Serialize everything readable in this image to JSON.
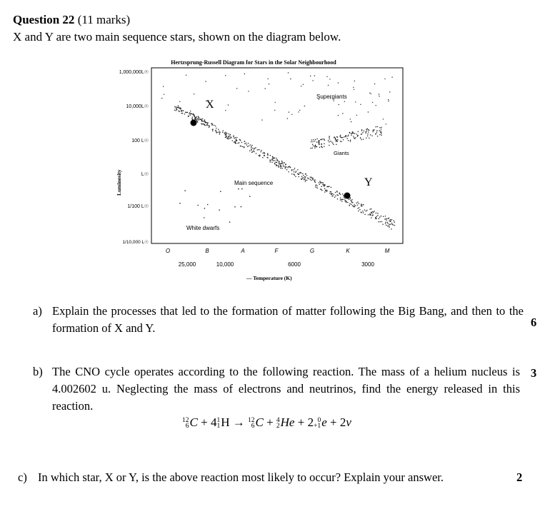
{
  "question": {
    "number_label": "Question 22",
    "marks_label": "(11 marks)",
    "intro": "X and Y are two main sequence stars, shown on the diagram below."
  },
  "diagram": {
    "title": "Hertzsprung-Russell Diagram for Stars in the Solar Neighbourhood",
    "y_axis_label": "Luminosity",
    "x_axis_label": "— Temperature (K)",
    "luminosity_ticks": [
      "1,000,000L☉",
      "10,000L☉",
      "100 L☉",
      "L☉",
      "1/100 L☉",
      "1/10,000 L☉"
    ],
    "spectral_classes": [
      "O",
      "B",
      "A",
      "F",
      "G",
      "K",
      "M"
    ],
    "temperature_ticks": [
      "25,000",
      "10,000",
      "6000",
      "3000"
    ],
    "region_labels": {
      "supergiants": "Supergiants",
      "giants": "Giants",
      "main_sequence": "Main sequence",
      "white_dwarfs": "White dwarfs"
    },
    "star_labels": {
      "x": "X",
      "y": "Y"
    }
  },
  "parts": [
    {
      "label": "a)",
      "text": "Explain the processes that led to the formation of matter following the Big Bang, and then to the formation of X and Y.",
      "marks": "6"
    },
    {
      "label": "b)",
      "text": "The CNO cycle operates according to the following reaction. The mass of a helium nucleus is 4.002602 u. Neglecting the mass of electrons and neutrinos, find the energy released in this reaction.",
      "marks": "3"
    },
    {
      "label": "c)",
      "text": "In which star, X or Y, is the above reaction most likely to occur? Explain your answer.",
      "marks": "2"
    }
  ],
  "equation": {
    "carbon_symbol": "C",
    "hydrogen_symbol": "H",
    "helium_symbol": "He",
    "electron_symbol": "e",
    "neutrino_symbol": "v",
    "carbon_mass": "12",
    "carbon_atomic": "6",
    "hydrogen_mass": "1",
    "hydrogen_atomic": "1",
    "helium_mass": "4",
    "helium_atomic": "2",
    "positron_mass": "0",
    "positron_charge": "+1",
    "hydrogen_coeff": "4",
    "positron_coeff": "2",
    "neutrino_coeff": "2",
    "arrow": "→",
    "plus": "+"
  }
}
